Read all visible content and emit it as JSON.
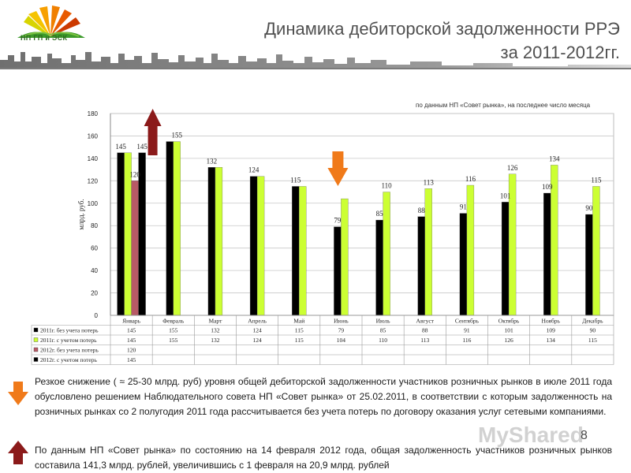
{
  "header": {
    "logo_text": "НП ГП и ЭСК",
    "title_line1": "Динамика дебиторской задолженности РРЭ",
    "title_line2": "за 2011-2012гг."
  },
  "source_note": "по данным НП «Совет рынка», на последнее число месяца",
  "chart_data": {
    "type": "bar",
    "ylabel": "млрд. руб.",
    "ylim": [
      0,
      180
    ],
    "yticks": [
      0,
      20,
      40,
      60,
      80,
      100,
      120,
      140,
      160,
      180
    ],
    "categories": [
      "Январь",
      "Февраль",
      "Март",
      "Апрель",
      "Май",
      "Июнь",
      "Июль",
      "Август",
      "Сентябрь",
      "Октябрь",
      "Ноябрь",
      "Декабрь"
    ],
    "series": [
      {
        "name": "2011г. без учета потерь",
        "color": "#000000",
        "values": [
          145,
          155,
          132,
          124,
          115,
          79,
          85,
          88,
          91,
          101,
          109,
          90
        ]
      },
      {
        "name": "2011г. с учетом потерь",
        "color": "#ccff33",
        "values": [
          145,
          155,
          132,
          124,
          115,
          104,
          110,
          113,
          116,
          126,
          134,
          115
        ]
      },
      {
        "name": "2012г. без учета потерь",
        "color": "#b85a66",
        "values": [
          120,
          null,
          null,
          null,
          null,
          null,
          null,
          null,
          null,
          null,
          null,
          null
        ]
      },
      {
        "name": "2012г. с учетом потерь",
        "color": "#000000",
        "values": [
          145,
          null,
          null,
          null,
          null,
          null,
          null,
          null,
          null,
          null,
          null,
          null
        ]
      }
    ],
    "bar_labels": [
      {
        "category": "Январь",
        "series": 0,
        "text": "145"
      },
      {
        "category": "Январь",
        "series": 2,
        "text": "120"
      },
      {
        "category": "Январь",
        "series": 3,
        "text": "145"
      },
      {
        "category": "Февраль",
        "series": 1,
        "text": "155"
      },
      {
        "category": "Март",
        "series": 0,
        "text": "132"
      },
      {
        "category": "Апрель",
        "series": 0,
        "text": "124"
      },
      {
        "category": "Май",
        "series": 0,
        "text": "115"
      },
      {
        "category": "Июнь",
        "series": 0,
        "text": "79"
      },
      {
        "category": "Июль",
        "series": 0,
        "text": "85"
      },
      {
        "category": "Июль",
        "series": 1,
        "text": "110"
      },
      {
        "category": "Август",
        "series": 0,
        "text": "88"
      },
      {
        "category": "Август",
        "series": 1,
        "text": "113"
      },
      {
        "category": "Сентябрь",
        "series": 0,
        "text": "91"
      },
      {
        "category": "Сентябрь",
        "series": 1,
        "text": "116"
      },
      {
        "category": "Октябрь",
        "series": 0,
        "text": "101"
      },
      {
        "category": "Октябрь",
        "series": 1,
        "text": "126"
      },
      {
        "category": "Ноябрь",
        "series": 0,
        "text": "109"
      },
      {
        "category": "Ноябрь",
        "series": 1,
        "text": "134"
      },
      {
        "category": "Декабрь",
        "series": 0,
        "text": "90"
      },
      {
        "category": "Декабрь",
        "series": 1,
        "text": "115"
      }
    ],
    "grid": true,
    "legend": "data table below chart",
    "annotations": [
      {
        "type": "arrow-up",
        "color": "#8b1a1a",
        "category": "Январь"
      },
      {
        "type": "arrow-down",
        "color": "#f07a1a",
        "category": "Июнь"
      }
    ]
  },
  "paragraphs": [
    "Резкое снижение ( ≈ 25-30 млрд. руб) уровня общей дебиторской задолженности участников розничных рынков в июле 2011 года обусловлено решением Наблюдательного совета НП «Совет рынка» от 25.02.2011, в соответствии с которым задолженность на розничных рынках со 2 полугодия 2011 года рассчитывается без учета потерь по договору оказания услуг сетевыми компаниями.",
    "По данным НП «Совет рынка» по состоянию на 14 февраля 2012 года, общая задолженность участников розничных рынков составила 141,3 млрд. рублей, увеличившись с 1 февраля на 20,9 млрд. рублей"
  ],
  "watermark": "MyShared",
  "page_number": "8"
}
